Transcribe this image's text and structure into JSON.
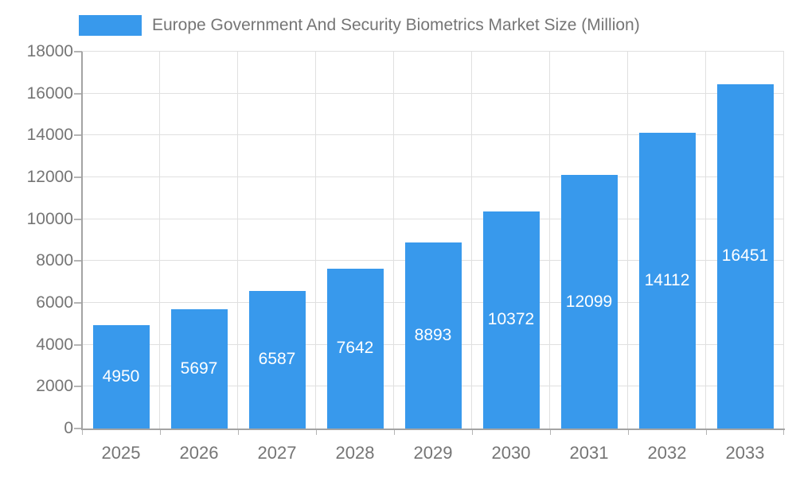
{
  "legend": {
    "label": "Europe Government And Security Biometrics Market Size (Million)"
  },
  "colors": {
    "bar": "#3899ec",
    "axis_text": "#757575",
    "grid": "#e0e0e0",
    "axis_line": "#a3a3a3",
    "tick": "#b4b4b4",
    "value_label": "#ffffff",
    "background": "#ffffff"
  },
  "chart_data": {
    "type": "bar",
    "title": "Europe Government And Security Biometrics Market Size (Million)",
    "categories": [
      "2025",
      "2026",
      "2027",
      "2028",
      "2029",
      "2030",
      "2031",
      "2032",
      "2033"
    ],
    "values": [
      4950,
      5697,
      6587,
      7642,
      8893,
      10372,
      12099,
      14112,
      16451
    ],
    "xlabel": "",
    "ylabel": "",
    "ylim": [
      0,
      18000
    ],
    "ytick_step": 2000,
    "yticks": [
      0,
      2000,
      4000,
      6000,
      8000,
      10000,
      12000,
      14000,
      16000,
      18000
    ],
    "grid": true,
    "legend_position": "top",
    "value_label_position": "inside-center"
  }
}
